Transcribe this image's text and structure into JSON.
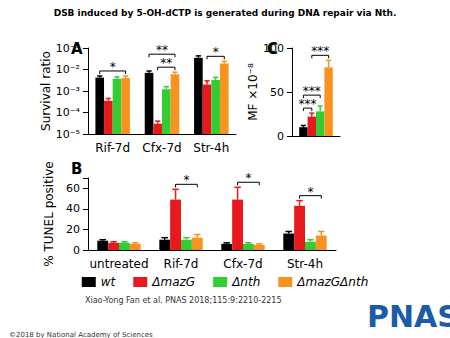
{
  "figure": {
    "title": "DSB induced by 5-OH-dCTP is generated during DNA repair via Nth.",
    "credit": "Xiao-Yong Fan et al. PNAS 2018;115:9:2210-2215",
    "copyright": "©2018 by National Academy of Sciences",
    "logo": "PNAS"
  },
  "chart_data": [
    {
      "type": "bar",
      "title": "A",
      "ylabel": "Survival ratio",
      "log": "y",
      "grid": false,
      "categories": [
        "Rif-7d",
        "Cfx-7d",
        "Str-4h"
      ],
      "series": [
        {
          "name": "wt",
          "color": "#000000",
          "values": [
            0.0042,
            0.007,
            0.035
          ],
          "errors": [
            0.0008,
            0.0015,
            0.008
          ]
        },
        {
          "name": "ΔmazG",
          "color": "#e8191c",
          "values": [
            0.00035,
            3e-05,
            0.002
          ],
          "errors": [
            0.0001,
            1e-05,
            0.001
          ]
        },
        {
          "name": "Δnth",
          "color": "#33cc33",
          "values": [
            0.0037,
            0.0012,
            0.0033
          ],
          "errors": [
            0.0008,
            0.0004,
            0.001
          ]
        },
        {
          "name": "ΔmazGΔnth",
          "color": "#f7931e",
          "values": [
            0.004,
            0.006,
            0.019
          ],
          "errors": [
            0.001,
            0.0015,
            0.005
          ]
        }
      ],
      "ylim": [
        1e-05,
        0.1
      ],
      "yticks": [
        {
          "value": 1e-05,
          "label": "10⁻⁵"
        },
        {
          "value": 0.0001,
          "label": "10⁻⁴"
        },
        {
          "value": 0.001,
          "label": "10⁻³"
        },
        {
          "value": 0.01,
          "label": "10⁻²"
        },
        {
          "value": 0.1,
          "label": "10⁻¹"
        }
      ],
      "annotations": [
        {
          "text": "*",
          "category": "Rif-7d",
          "between": [
            "wt",
            "ΔmazGΔnth"
          ]
        },
        {
          "text": "**",
          "category": "Cfx-7d",
          "between": [
            "ΔmazG",
            "ΔmazGΔnth"
          ]
        },
        {
          "text": "**",
          "category": "Cfx-7d",
          "between": [
            "wt",
            "ΔmazGΔnth"
          ]
        },
        {
          "text": "*",
          "category": "Str-4h",
          "between": [
            "ΔmazG",
            "ΔmazGΔnth"
          ]
        }
      ]
    },
    {
      "type": "bar",
      "title": "B",
      "ylabel": "% TUNEL positive",
      "grid": false,
      "legend": "bottom",
      "categories": [
        "untreated",
        "Rif-7d",
        "Cfx-7d",
        "Str-4h"
      ],
      "series": [
        {
          "name": "wt",
          "color": "#000000",
          "values": [
            9,
            10,
            6,
            16
          ],
          "errors": [
            1,
            2,
            1,
            2
          ]
        },
        {
          "name": "ΔmazG",
          "color": "#e8191c",
          "values": [
            7,
            49,
            49,
            43
          ],
          "errors": [
            1,
            10,
            12,
            5
          ]
        },
        {
          "name": "Δnth",
          "color": "#33cc33",
          "values": [
            7,
            10,
            6,
            8
          ],
          "errors": [
            1,
            2,
            1,
            2
          ]
        },
        {
          "name": "ΔmazGΔnth",
          "color": "#f7931e",
          "values": [
            6,
            12,
            5,
            14
          ],
          "errors": [
            1,
            3,
            1,
            4
          ]
        }
      ],
      "ylim": [
        0,
        70
      ],
      "yticks": [
        0,
        20,
        40,
        60
      ],
      "annotations": [
        {
          "text": "*",
          "category": "Rif-7d",
          "between": [
            "ΔmazG",
            "ΔmazGΔnth"
          ]
        },
        {
          "text": "*",
          "category": "Cfx-7d",
          "between": [
            "ΔmazG",
            "ΔmazGΔnth"
          ]
        },
        {
          "text": "*",
          "category": "Str-4h",
          "between": [
            "ΔmazG",
            "ΔmazGΔnth"
          ]
        }
      ]
    },
    {
      "type": "bar",
      "title": "C",
      "ylabel": "MF ×10⁻⁸",
      "grid": false,
      "categories": [
        null
      ],
      "series": [
        {
          "name": "wt",
          "color": "#000000",
          "values": [
            10
          ],
          "errors": [
            2
          ]
        },
        {
          "name": "ΔmazG",
          "color": "#e8191c",
          "values": [
            22
          ],
          "errors": [
            4
          ]
        },
        {
          "name": "Δnth",
          "color": "#33cc33",
          "values": [
            28
          ],
          "errors": [
            6
          ]
        },
        {
          "name": "ΔmazGΔnth",
          "color": "#f7931e",
          "values": [
            78
          ],
          "errors": [
            8
          ]
        }
      ],
      "ylim": [
        0,
        100
      ],
      "yticks": [
        0,
        50,
        100
      ],
      "annotations": [
        {
          "text": "***",
          "between": [
            "wt",
            "ΔmazG"
          ]
        },
        {
          "text": "***",
          "between": [
            "wt",
            "Δnth"
          ]
        },
        {
          "text": "***",
          "between": [
            "ΔmazG",
            "ΔmazGΔnth"
          ]
        }
      ]
    }
  ]
}
